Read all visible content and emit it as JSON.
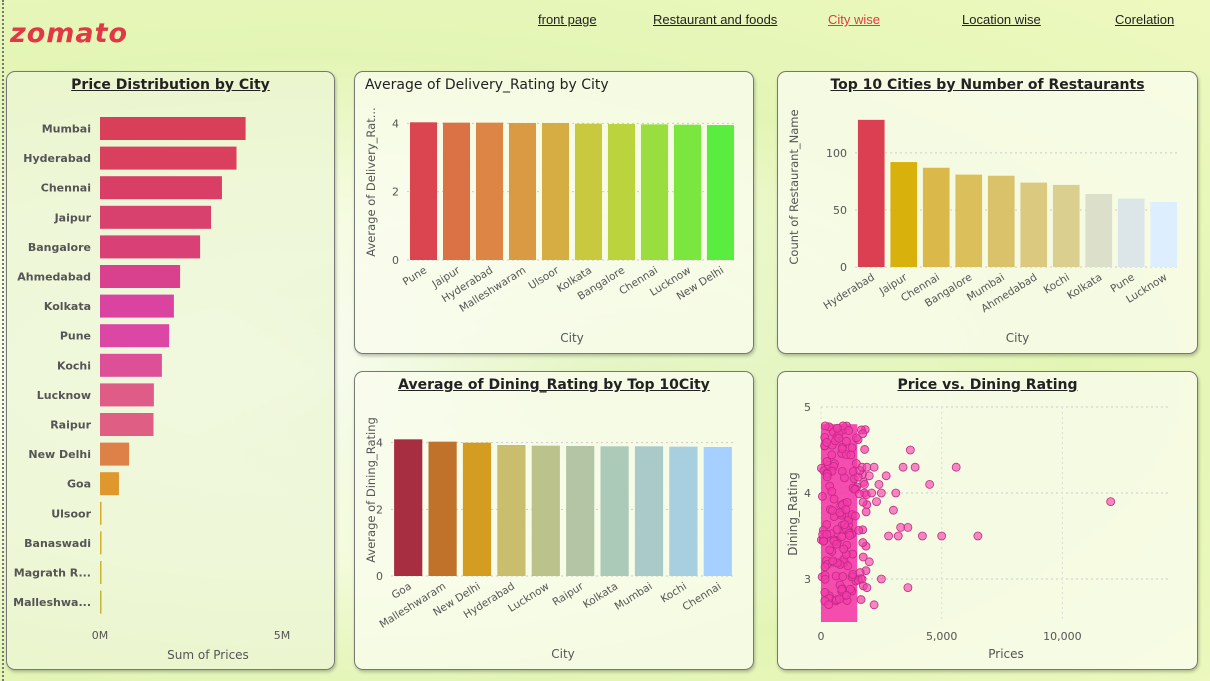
{
  "logo": "zomato",
  "nav": [
    "front page",
    "Restaurant and foods",
    "City wise",
    "Location wise",
    "Corelation"
  ],
  "nav_active": "City wise",
  "colors": {
    "accent": "#e23744"
  },
  "chart_data": [
    {
      "id": "price-by-city",
      "type": "bar",
      "orientation": "horizontal",
      "title": "Price Distribution by City",
      "xlabel": "Sum of Prices",
      "ylabel": "",
      "ticks": [
        "0M",
        "5M"
      ],
      "xlim": [
        0,
        5000000
      ],
      "categories": [
        "Mumbai",
        "Hyderabad",
        "Chennai",
        "Jaipur",
        "Bangalore",
        "Ahmedabad",
        "Kolkata",
        "Pune",
        "Kochi",
        "Lucknow",
        "Raipur",
        "New Delhi",
        "Goa",
        "Ulsoor",
        "Banaswadi",
        "Magrath R...",
        "Malleshwa..."
      ],
      "values": [
        4000000,
        3750000,
        3350000,
        3050000,
        2750000,
        2200000,
        2030000,
        1900000,
        1700000,
        1480000,
        1470000,
        800000,
        520000,
        20000,
        15000,
        12000,
        10000
      ],
      "colors": [
        "#da3f5a",
        "#da3f5e",
        "#d93f66",
        "#d8406e",
        "#d84076",
        "#d9418f",
        "#db43a1",
        "#dc46a5",
        "#dd4f97",
        "#de5c87",
        "#df5e83",
        "#de8149",
        "#df982e",
        "#d9ab27",
        "#d4b22a",
        "#c9b430",
        "#c0b635"
      ]
    },
    {
      "id": "delivery-rating-by-city",
      "type": "bar",
      "title": "Average of Delivery_Rating by City",
      "xlabel": "City",
      "ylabel": "Average of Delivery_Rat...",
      "ticks": [
        "0",
        "2",
        "4"
      ],
      "ylim": [
        0,
        4.8
      ],
      "categories": [
        "Pune",
        "Jaipur",
        "Hyderabad",
        "Malleshwaram",
        "Ulsoor",
        "Kolkata",
        "Bangalore",
        "Chennai",
        "Lucknow",
        "New Delhi"
      ],
      "values": [
        4.03,
        4.02,
        4.02,
        4.01,
        4.01,
        3.99,
        3.98,
        3.97,
        3.96,
        3.95
      ],
      "colors": [
        "#db4550",
        "#db7245",
        "#dc8544",
        "#d99a43",
        "#d5ad43",
        "#c9c93f",
        "#bbd43d",
        "#99de3e",
        "#7be63e",
        "#5aec3f"
      ]
    },
    {
      "id": "top10-cities-restaurants",
      "type": "bar",
      "title": "Top 10 Cities by Number of Restaurants",
      "xlabel": "City",
      "ylabel": "Count of Restaurant_Name",
      "ticks": [
        "0",
        "50",
        "100"
      ],
      "ylim": [
        0,
        135
      ],
      "categories": [
        "Hyderabad",
        "Jaipur",
        "Chennai",
        "Bangalore",
        "Mumbai",
        "Ahmedabad",
        "Kochi",
        "Kolkata",
        "Pune",
        "Lucknow"
      ],
      "values": [
        129,
        92,
        87,
        81,
        80,
        74,
        72,
        64,
        60,
        57
      ],
      "colors": [
        "#db4052",
        "#d8b10d",
        "#dbb84a",
        "#dbbf5a",
        "#d9c26a",
        "#dac97e",
        "#dbcf90",
        "#dcdfc9",
        "#dce6e8",
        "#dceeff"
      ]
    },
    {
      "id": "dining-rating-top10",
      "type": "bar",
      "title": "Average of Dining_Rating by Top 10City",
      "xlabel": "City",
      "ylabel": "Average of Dining_Rating",
      "ticks": [
        "0",
        "2",
        "4"
      ],
      "ylim": [
        0,
        4.8
      ],
      "categories": [
        "Goa",
        "Malleshwaram",
        "New Delhi",
        "Hyderabad",
        "Lucknow",
        "Raipur",
        "Kolkata",
        "Mumbai",
        "Kochi",
        "Chennai"
      ],
      "values": [
        4.1,
        4.03,
        4.0,
        3.93,
        3.91,
        3.9,
        3.89,
        3.89,
        3.88,
        3.87
      ],
      "colors": [
        "#a72e40",
        "#c0722a",
        "#d49c20",
        "#c9bd6e",
        "#bcc28c",
        "#b3c5a4",
        "#abcab8",
        "#a9cac8",
        "#a8cfe0",
        "#a6d0ff"
      ]
    },
    {
      "id": "price-vs-dining",
      "type": "scatter",
      "title": "Price vs. Dining Rating",
      "xlabel": "Prices",
      "ylabel": "Dining_Rating",
      "xticks": [
        "0",
        "5,000",
        "10,000"
      ],
      "yticks": [
        "3",
        "4",
        "5"
      ],
      "xlim": [
        0,
        14500
      ],
      "ylim": [
        2.5,
        5
      ],
      "dense_band": {
        "x_max": 1500,
        "y_min": 2.5,
        "y_max": 4.8
      },
      "outliers": [
        [
          1700,
          4.3
        ],
        [
          1800,
          4.1
        ],
        [
          1900,
          4.3
        ],
        [
          2000,
          4.2
        ],
        [
          2100,
          4.0
        ],
        [
          2200,
          4.3
        ],
        [
          2300,
          3.9
        ],
        [
          2400,
          4.1
        ],
        [
          2500,
          4.0
        ],
        [
          2700,
          4.2
        ],
        [
          2800,
          3.5
        ],
        [
          3000,
          3.8
        ],
        [
          3100,
          4.0
        ],
        [
          3200,
          3.5
        ],
        [
          3300,
          3.6
        ],
        [
          3400,
          4.3
        ],
        [
          3600,
          3.6
        ],
        [
          3700,
          4.5
        ],
        [
          3900,
          4.3
        ],
        [
          4200,
          3.5
        ],
        [
          4500,
          4.1
        ],
        [
          5000,
          3.5
        ],
        [
          5600,
          4.3
        ],
        [
          6500,
          3.5
        ],
        [
          12000,
          3.9
        ],
        [
          1700,
          3.0
        ],
        [
          1900,
          2.9
        ],
        [
          2200,
          2.7
        ],
        [
          2500,
          3.0
        ],
        [
          3600,
          2.9
        ],
        [
          2000,
          3.2
        ]
      ],
      "color": "#f53aa8"
    }
  ]
}
